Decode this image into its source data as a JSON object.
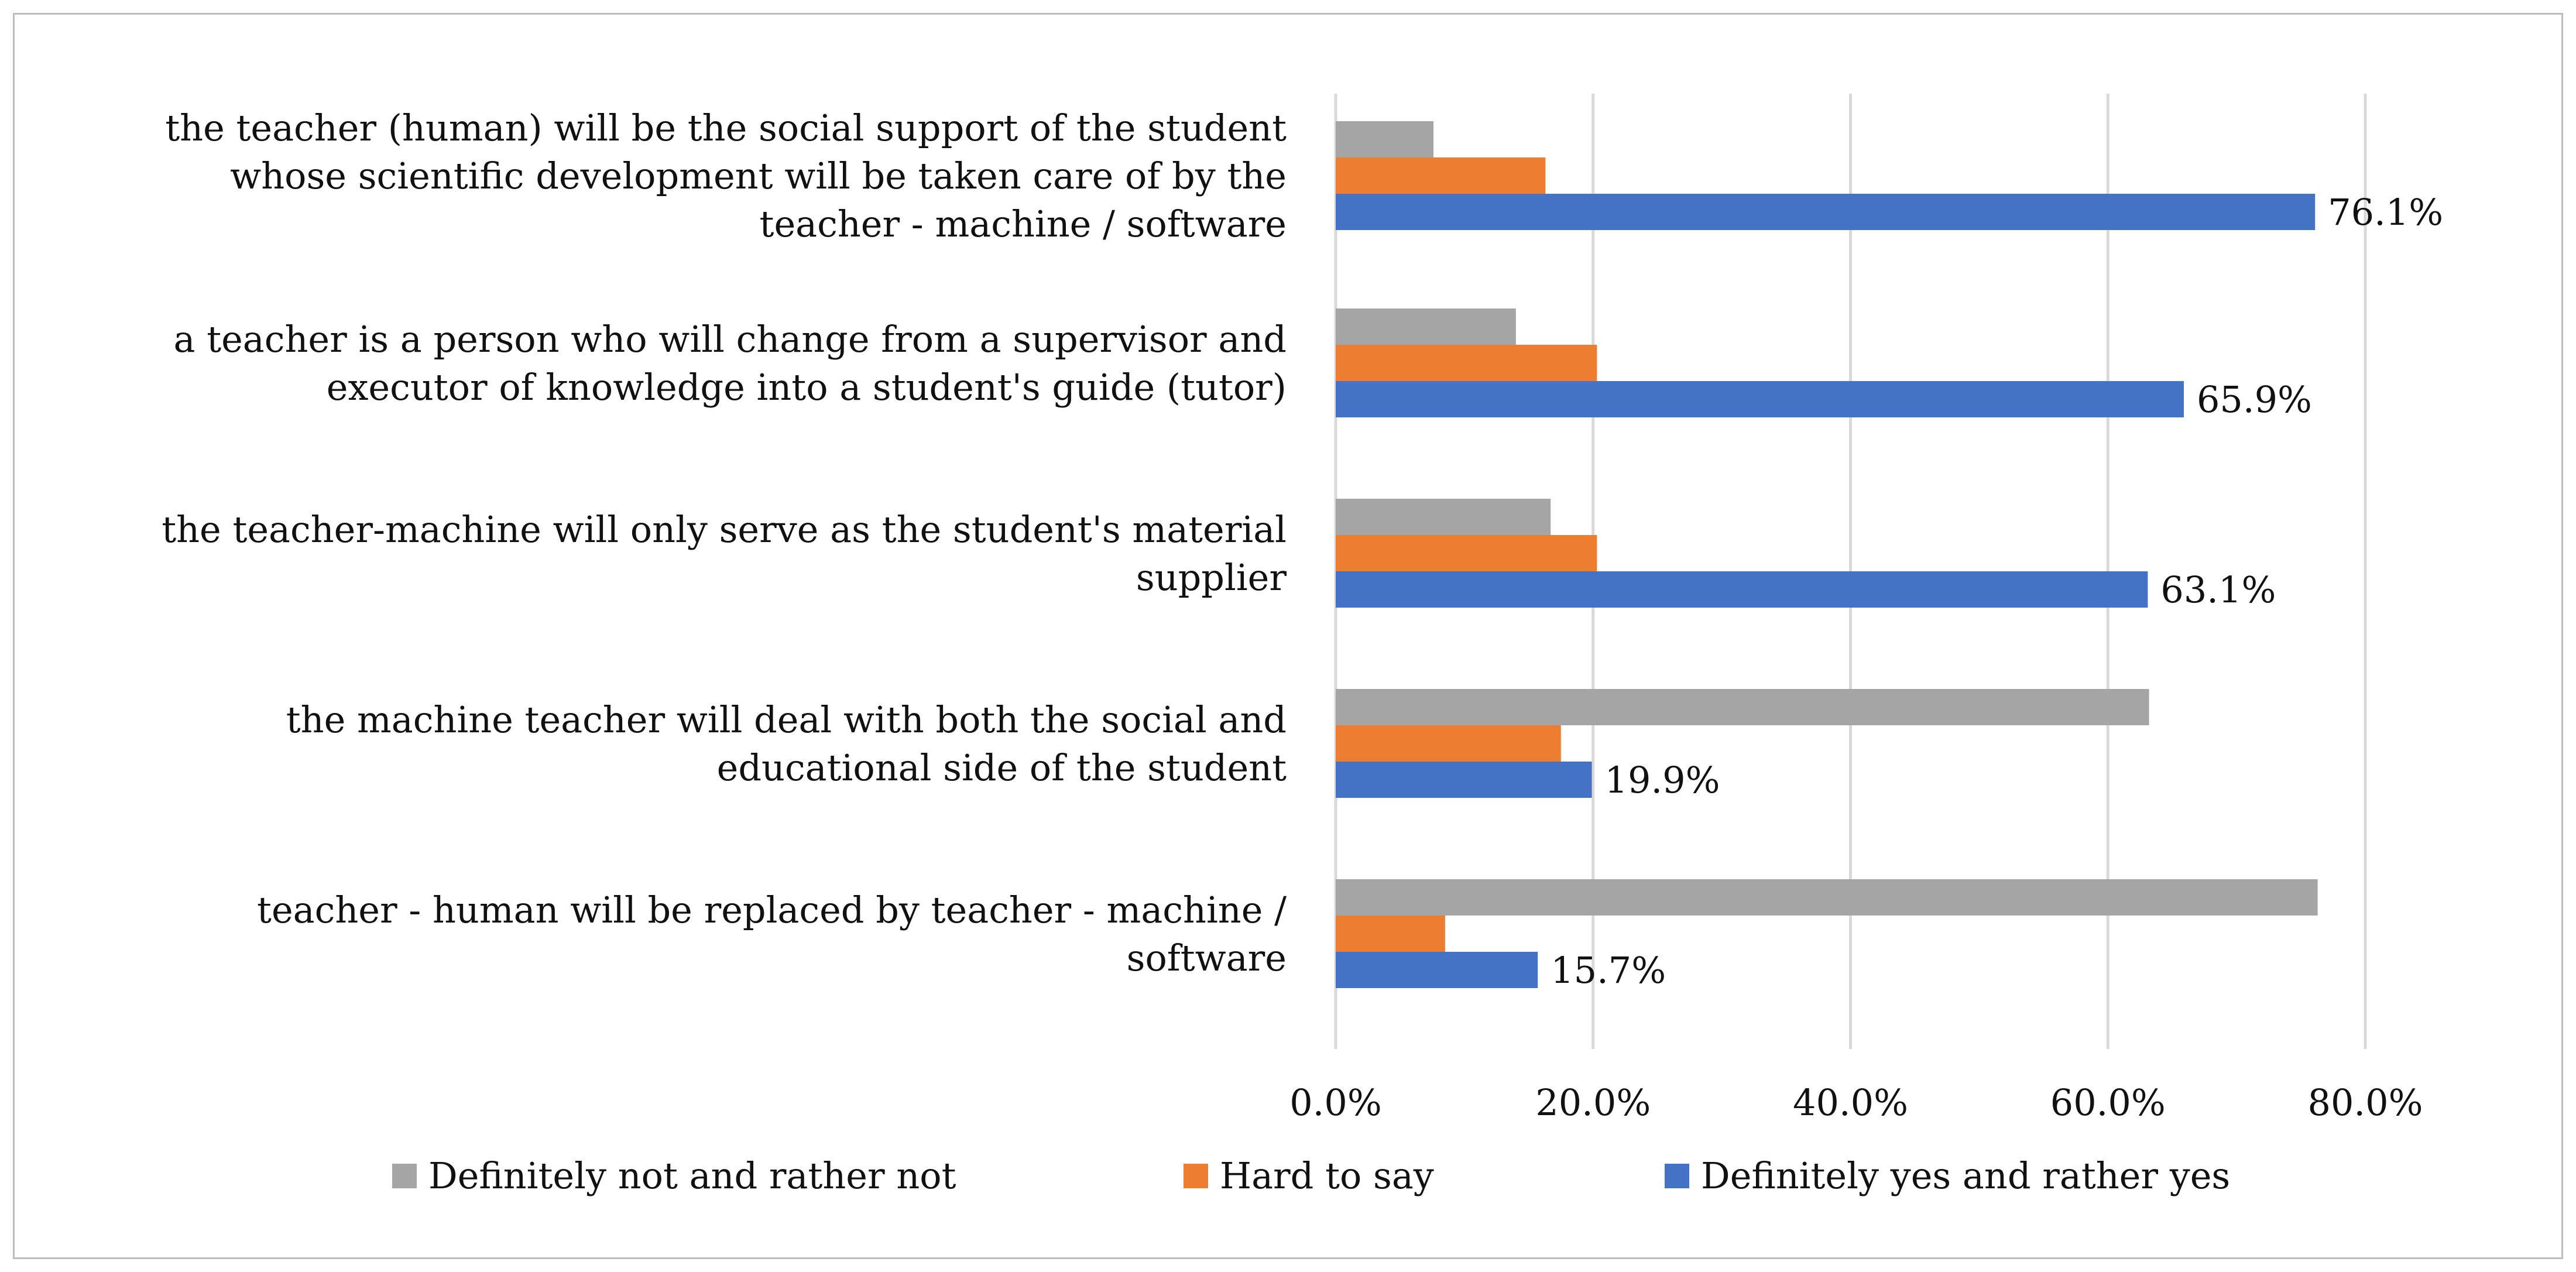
{
  "chart_data": {
    "type": "bar",
    "orientation": "horizontal",
    "title": "",
    "xlabel": "",
    "ylabel": "",
    "xlim": [
      0,
      0.8
    ],
    "x_ticks": [
      {
        "value": 0.0,
        "label": "0.0%"
      },
      {
        "value": 0.2,
        "label": "20.0%"
      },
      {
        "value": 0.4,
        "label": "40.0%"
      },
      {
        "value": 0.6,
        "label": "60.0%"
      },
      {
        "value": 0.8,
        "label": "80.0%"
      }
    ],
    "grid": "vertical",
    "legend_position": "bottom",
    "categories": [
      {
        "lines": [
          "the teacher (human) will be the social support of the student",
          "whose scientific development will be taken care of by the",
          "teacher - machine / software"
        ]
      },
      {
        "lines": [
          "a teacher is a person who will change from a supervisor and",
          "executor of knowledge into a student's guide (tutor)"
        ]
      },
      {
        "lines": [
          "the teacher-machine will only serve as the student's material",
          "supplier"
        ]
      },
      {
        "lines": [
          "the machine teacher will deal with both the social and",
          "educational side of the student"
        ]
      },
      {
        "lines": [
          "teacher - human will be replaced by teacher - machine /",
          "software"
        ]
      }
    ],
    "series": [
      {
        "name": "Definitely not and rather not",
        "color": "#a5a5a5",
        "values": [
          0.076,
          0.14,
          0.167,
          0.632,
          0.763
        ],
        "labels": [
          "",
          "",
          "",
          "",
          ""
        ]
      },
      {
        "name": "Hard to say",
        "color": "#ed7d31",
        "values": [
          0.163,
          0.203,
          0.203,
          0.175,
          0.085
        ],
        "labels": [
          "",
          "",
          "",
          "",
          ""
        ]
      },
      {
        "name": "Definitely yes and rather yes",
        "color": "#4472c4",
        "values": [
          0.761,
          0.659,
          0.631,
          0.199,
          0.157
        ],
        "labels": [
          "76.1%",
          "65.9%",
          "63.1%",
          "19.9%",
          "15.7%"
        ]
      }
    ]
  }
}
